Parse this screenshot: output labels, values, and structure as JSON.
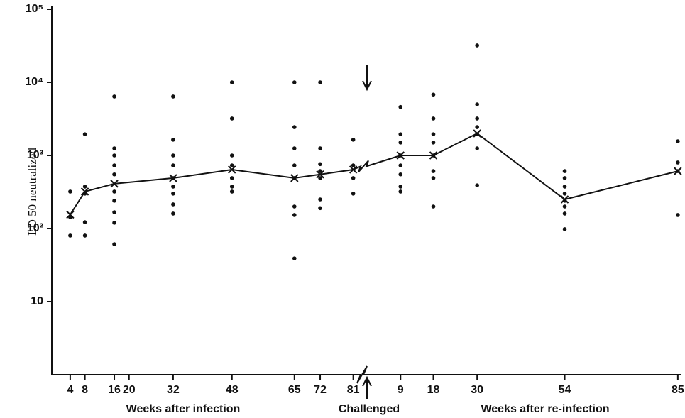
{
  "chart_data": {
    "type": "scatter",
    "ylabel": "LD 50 neutralized",
    "log_y": true,
    "ylim": [
      1,
      100000
    ],
    "yticks": [
      10,
      {
        "value": 100,
        "label": "10²"
      },
      {
        "value": 1000,
        "label": "10³"
      },
      {
        "value": 10000,
        "label": "10⁴"
      },
      {
        "value": 100000,
        "label": "10⁵"
      }
    ],
    "color": "#111111",
    "annotation": "Challenged",
    "segments": [
      {
        "xlabel": "Weeks after infection",
        "xlim": [
          -1,
          83
        ],
        "xticks": [
          4,
          8,
          16,
          20,
          32,
          48,
          65,
          72,
          81
        ],
        "groups": [
          {
            "x": 4,
            "values": [
              320,
              143,
              80
            ],
            "mean": 155
          },
          {
            "x": 8,
            "values": [
              1950,
              374,
              300,
              122,
              80
            ],
            "mean": 320
          },
          {
            "x": 16,
            "values": [
              6400,
              1250,
              1000,
              730,
              550,
              320,
              240,
              167,
              120,
              61
            ],
            "mean": 410
          },
          {
            "x": 32,
            "values": [
              6400,
              1640,
              1000,
              730,
              490,
              374,
              300,
              214,
              160
            ],
            "mean": 490
          },
          {
            "x": 48,
            "values": [
              10000,
              3200,
              1000,
              730,
              490,
              374,
              320
            ],
            "mean": 640
          },
          {
            "x": 65,
            "values": [
              10000,
              2440,
              1250,
              730,
              490,
              200,
              153,
              39
            ],
            "mean": 490
          },
          {
            "x": 72,
            "values": [
              10000,
              1250,
              760,
              610,
              490,
              250,
              190
            ],
            "mean": 550
          },
          {
            "x": 81,
            "values": [
              1640,
              730,
              490,
              300
            ],
            "mean": 640
          }
        ]
      },
      {
        "xlabel": "Weeks after re-infection",
        "xlim": [
          0,
          86
        ],
        "xticks": [
          9,
          18,
          30,
          54,
          85
        ],
        "groups": [
          {
            "x": 9,
            "values": [
              4600,
              1950,
              1500,
              1000,
              730,
              550,
              374,
              320
            ],
            "mean": 1000
          },
          {
            "x": 18,
            "values": [
              6800,
              3200,
              1950,
              1500,
              1000,
              610,
              490,
              200
            ],
            "mean": 1000
          },
          {
            "x": 30,
            "values": [
              32000,
              5000,
              3200,
              2440,
              1950,
              1250,
              390
            ],
            "mean": 2000
          },
          {
            "x": 54,
            "values": [
              610,
              490,
              374,
              300,
              240,
              200,
              160,
              98
            ],
            "mean": 250
          },
          {
            "x": 85,
            "values": [
              1560,
              800,
              610,
              153
            ],
            "mean": 610
          }
        ]
      }
    ]
  }
}
